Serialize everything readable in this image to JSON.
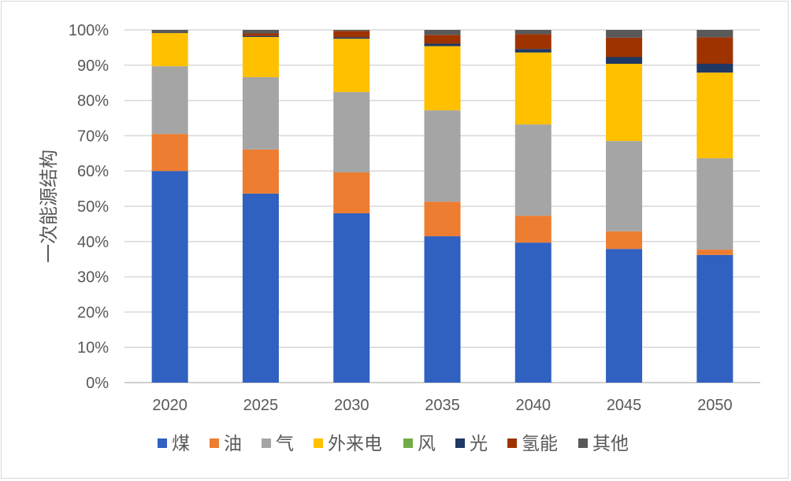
{
  "chart_data": {
    "type": "bar",
    "stacked": true,
    "title": "",
    "xlabel": "",
    "ylabel": "一次能源结构",
    "ylim": [
      0,
      100
    ],
    "yticks": [
      "0%",
      "10%",
      "20%",
      "30%",
      "40%",
      "50%",
      "60%",
      "70%",
      "80%",
      "90%",
      "100%"
    ],
    "grid": true,
    "legend_position": "bottom",
    "categories": [
      "2020",
      "2025",
      "2030",
      "2035",
      "2040",
      "2045",
      "2050"
    ],
    "series": [
      {
        "name": "煤",
        "color": "#3060c0",
        "values": [
          60.0,
          53.6,
          48.0,
          41.5,
          39.7,
          37.9,
          36.2
        ]
      },
      {
        "name": "油",
        "color": "#ed7d31",
        "values": [
          10.5,
          12.5,
          11.6,
          9.8,
          7.6,
          5.0,
          1.5
        ]
      },
      {
        "name": "气",
        "color": "#a5a5a5",
        "values": [
          19.2,
          20.5,
          22.8,
          25.9,
          25.9,
          25.6,
          25.9
        ]
      },
      {
        "name": "外来电",
        "color": "#ffc000",
        "values": [
          9.4,
          11.4,
          15.1,
          18.2,
          20.4,
          21.9,
          24.3
        ]
      },
      {
        "name": "风",
        "color": "#70ad47",
        "values": [
          0,
          0,
          0,
          0,
          0,
          0,
          0
        ]
      },
      {
        "name": "光",
        "color": "#1f3864",
        "values": [
          0,
          0.3,
          0.4,
          0.7,
          1.0,
          1.9,
          2.5
        ]
      },
      {
        "name": "氢能",
        "color": "#9e3300",
        "values": [
          0,
          0.7,
          1.8,
          2.5,
          4.2,
          5.5,
          7.5
        ]
      },
      {
        "name": "其他",
        "color": "#595959",
        "values": [
          0.9,
          1.0,
          0.3,
          1.4,
          1.2,
          2.2,
          2.1
        ]
      }
    ]
  }
}
